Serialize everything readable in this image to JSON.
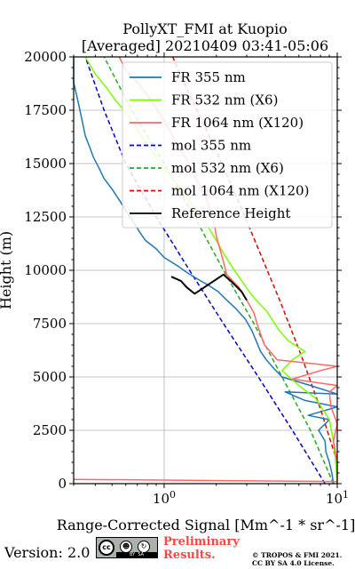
{
  "chart_data": {
    "type": "line",
    "title": "PollyXT_FMI at Kuopio",
    "subtitle": "[Averaged] 20210409 03:41-05:06",
    "xlabel": "Range-Corrected Signal [Mm^-1 * sr^-1]",
    "ylabel": "Height (m)",
    "xscale": "log",
    "xlim": [
      0.3,
      10
    ],
    "ylim": [
      0,
      20000
    ],
    "x_tick_labels": [
      "10^0",
      "10^1"
    ],
    "y_ticks": [
      0,
      2500,
      5000,
      7500,
      10000,
      12500,
      15000,
      17500,
      20000
    ],
    "y_tick_labels": [
      "0",
      "2500",
      "5000",
      "7500",
      "10000",
      "12500",
      "15000",
      "17500",
      "20000"
    ],
    "grid": true,
    "legend_position": "top-right",
    "series": [
      {
        "name": "FR 355 nm",
        "color": "#1f77b4",
        "style": "solid",
        "points": [
          [
            9.5,
            0
          ],
          [
            9.3,
            500
          ],
          [
            9.0,
            1000
          ],
          [
            8.6,
            1500
          ],
          [
            8.5,
            2000
          ],
          [
            7.8,
            2500
          ],
          [
            9.0,
            3000
          ],
          [
            6.8,
            3200
          ],
          [
            10.0,
            3600
          ],
          [
            6.5,
            3900
          ],
          [
            5.0,
            4300
          ],
          [
            10.0,
            4200
          ],
          [
            7.0,
            4600
          ],
          [
            4.8,
            5000
          ],
          [
            4.3,
            5400
          ],
          [
            3.9,
            5800
          ],
          [
            3.6,
            6200
          ],
          [
            3.4,
            6700
          ],
          [
            3.2,
            7200
          ],
          [
            2.95,
            7700
          ],
          [
            2.6,
            8200
          ],
          [
            2.3,
            8600
          ],
          [
            2.05,
            9000
          ],
          [
            1.8,
            9300
          ],
          [
            1.55,
            9600
          ],
          [
            1.35,
            9900
          ],
          [
            1.2,
            10200
          ],
          [
            1.0,
            10600
          ],
          [
            0.9,
            11000
          ],
          [
            0.78,
            11400
          ],
          [
            0.72,
            11800
          ],
          [
            0.66,
            12300
          ],
          [
            0.6,
            12800
          ],
          [
            0.55,
            13300
          ],
          [
            0.5,
            13800
          ],
          [
            0.45,
            14300
          ],
          [
            0.42,
            14800
          ],
          [
            0.39,
            15300
          ],
          [
            0.37,
            15800
          ],
          [
            0.35,
            16300
          ],
          [
            0.34,
            16800
          ],
          [
            0.33,
            17300
          ],
          [
            0.32,
            17800
          ],
          [
            0.31,
            18300
          ],
          [
            0.3,
            18800
          ],
          [
            0.3,
            19300
          ],
          [
            0.3,
            20000
          ]
        ]
      },
      {
        "name": "FR 532 nm (X6)",
        "color": "#7cfc00",
        "style": "solid",
        "points": [
          [
            10.0,
            0
          ],
          [
            9.8,
            1000
          ],
          [
            9.5,
            2000
          ],
          [
            9.0,
            3000
          ],
          [
            7.5,
            4000
          ],
          [
            6.0,
            4600
          ],
          [
            4.8,
            5300
          ],
          [
            5.5,
            5800
          ],
          [
            6.5,
            6200
          ],
          [
            5.2,
            6700
          ],
          [
            4.6,
            7200
          ],
          [
            4.2,
            7700
          ],
          [
            3.9,
            8100
          ],
          [
            3.4,
            8600
          ],
          [
            3.1,
            9000
          ],
          [
            2.75,
            9600
          ],
          [
            2.45,
            10200
          ],
          [
            2.2,
            10800
          ],
          [
            2.0,
            11400
          ],
          [
            1.8,
            12000
          ],
          [
            1.6,
            12600
          ],
          [
            1.42,
            13200
          ],
          [
            1.25,
            13800
          ],
          [
            1.1,
            14400
          ],
          [
            0.95,
            15000
          ],
          [
            0.85,
            15600
          ],
          [
            0.75,
            16200
          ],
          [
            0.68,
            16800
          ],
          [
            0.6,
            17400
          ],
          [
            0.52,
            18000
          ],
          [
            0.46,
            18600
          ],
          [
            0.4,
            19200
          ],
          [
            0.35,
            20000
          ]
        ]
      },
      {
        "name": "FR 1064 nm (X120)",
        "color": "#ff6666",
        "style": "solid",
        "points": [
          [
            0.3,
            200
          ],
          [
            10.0,
            100
          ],
          [
            10.0,
            1000
          ],
          [
            9.5,
            2000
          ],
          [
            10.0,
            2800
          ],
          [
            9.2,
            3600
          ],
          [
            9.0,
            4300
          ],
          [
            10.0,
            4600
          ],
          [
            5.5,
            4900
          ],
          [
            8.0,
            5300
          ],
          [
            10.0,
            5500
          ],
          [
            4.5,
            5800
          ],
          [
            3.8,
            6500
          ],
          [
            3.5,
            7300
          ],
          [
            3.3,
            8000
          ],
          [
            3.0,
            8600
          ],
          [
            2.7,
            9200
          ],
          [
            2.3,
            9800
          ],
          [
            2.2,
            10400
          ],
          [
            2.1,
            11000
          ],
          [
            2.0,
            11600
          ],
          [
            1.95,
            12200
          ],
          [
            1.85,
            12800
          ],
          [
            1.75,
            13400
          ],
          [
            1.6,
            14000
          ],
          [
            1.45,
            14600
          ],
          [
            1.35,
            15200
          ],
          [
            1.2,
            15800
          ],
          [
            1.1,
            16400
          ],
          [
            1.0,
            17000
          ],
          [
            0.9,
            17600
          ],
          [
            0.8,
            18200
          ],
          [
            0.7,
            18800
          ],
          [
            0.6,
            19400
          ],
          [
            0.55,
            20000
          ]
        ]
      },
      {
        "name": "mol 355 nm",
        "color": "#0000cc",
        "style": "dashed",
        "points": [
          [
            8.5,
            0
          ],
          [
            5.5,
            2500
          ],
          [
            3.5,
            5000
          ],
          [
            2.2,
            7500
          ],
          [
            1.4,
            10000
          ],
          [
            0.9,
            12500
          ],
          [
            0.6,
            15000
          ],
          [
            0.45,
            17500
          ],
          [
            0.35,
            20000
          ]
        ]
      },
      {
        "name": "mol 532 nm (X6)",
        "color": "#22aa22",
        "style": "dashed",
        "points": [
          [
            9.5,
            0
          ],
          [
            7.0,
            2500
          ],
          [
            4.8,
            5000
          ],
          [
            3.3,
            7500
          ],
          [
            2.2,
            10000
          ],
          [
            1.5,
            12500
          ],
          [
            1.0,
            15000
          ],
          [
            0.65,
            17500
          ],
          [
            0.45,
            20000
          ]
        ]
      },
      {
        "name": "mol 1064 nm (X120)",
        "color": "#dd0000",
        "style": "dashed",
        "points": [
          [
            10.0,
            1000
          ],
          [
            8.0,
            3500
          ],
          [
            6.2,
            6000
          ],
          [
            4.7,
            8500
          ],
          [
            3.5,
            11000
          ],
          [
            2.6,
            13500
          ],
          [
            1.9,
            16000
          ],
          [
            1.35,
            18500
          ],
          [
            1.12,
            20000
          ]
        ]
      },
      {
        "name": "Reference Height",
        "color": "#000000",
        "style": "solid",
        "points": [
          [
            1.1,
            9700
          ],
          [
            1.25,
            9500
          ],
          [
            1.35,
            9200
          ],
          [
            1.5,
            8900
          ],
          [
            2.2,
            9800
          ],
          [
            2.5,
            9400
          ],
          [
            2.8,
            9000
          ],
          [
            3.0,
            8600
          ]
        ]
      }
    ]
  },
  "footer": {
    "version": "Version: 2.0",
    "license_badge": {
      "cc": "cc",
      "by": "BY",
      "sa": "SA"
    },
    "preliminary_line1": "Preliminary",
    "preliminary_line2": "Results.",
    "copyright_line1": "© TROPOS & FMI 2021.",
    "copyright_line2": "CC BY SA 4.0 License."
  }
}
